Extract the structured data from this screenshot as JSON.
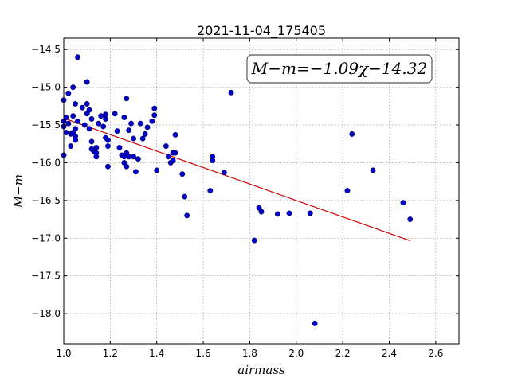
{
  "chart_data": {
    "type": "scatter",
    "title": "2021-11-04_175405",
    "xlabel": "airmass",
    "ylabel": "M−m",
    "annotation": "M−m=−1.09χ−14.32",
    "xlim": [
      1.0,
      2.7
    ],
    "ylim": [
      -18.4,
      -14.35
    ],
    "xticks": [
      1.0,
      1.2,
      1.4,
      1.6,
      1.8,
      2.0,
      2.2,
      2.4,
      2.6
    ],
    "xtick_labels": [
      "1.0",
      "1.2",
      "1.4",
      "1.6",
      "1.8",
      "2.0",
      "2.2",
      "2.4",
      "2.6"
    ],
    "yticks": [
      -14.5,
      -15.0,
      -15.5,
      -16.0,
      -16.5,
      -17.0,
      -17.5,
      -18.0
    ],
    "ytick_labels": [
      "−14.5",
      "−15.0",
      "−15.5",
      "−16.0",
      "−16.5",
      "−17.0",
      "−17.5",
      "−18.0"
    ],
    "grid": true,
    "point_color": "#0000cc",
    "fit_color": "#cc0000",
    "fit": {
      "slope": -1.09,
      "intercept": -14.32,
      "x_range": [
        1.0,
        2.49
      ]
    },
    "points": [
      [
        1.0,
        -15.17
      ],
      [
        1.0,
        -15.45
      ],
      [
        1.0,
        -15.52
      ],
      [
        1.0,
        -15.9
      ],
      [
        1.01,
        -15.4
      ],
      [
        1.01,
        -15.6
      ],
      [
        1.02,
        -15.48
      ],
      [
        1.02,
        -15.08
      ],
      [
        1.03,
        -15.62
      ],
      [
        1.03,
        -15.78
      ],
      [
        1.04,
        -15.0
      ],
      [
        1.04,
        -15.38
      ],
      [
        1.04,
        -15.6
      ],
      [
        1.05,
        -15.22
      ],
      [
        1.05,
        -15.55
      ],
      [
        1.05,
        -15.65
      ],
      [
        1.05,
        -15.7
      ],
      [
        1.06,
        -15.45
      ],
      [
        1.06,
        -14.6
      ],
      [
        1.08,
        -15.27
      ],
      [
        1.09,
        -15.5
      ],
      [
        1.1,
        -15.22
      ],
      [
        1.1,
        -15.35
      ],
      [
        1.1,
        -14.93
      ],
      [
        1.11,
        -15.3
      ],
      [
        1.11,
        -15.55
      ],
      [
        1.12,
        -15.42
      ],
      [
        1.12,
        -15.72
      ],
      [
        1.12,
        -15.82
      ],
      [
        1.13,
        -15.85
      ],
      [
        1.14,
        -15.87
      ],
      [
        1.14,
        -15.92
      ],
      [
        1.14,
        -15.8
      ],
      [
        1.15,
        -15.48
      ],
      [
        1.16,
        -15.38
      ],
      [
        1.17,
        -15.52
      ],
      [
        1.18,
        -15.36
      ],
      [
        1.18,
        -15.42
      ],
      [
        1.18,
        -15.67
      ],
      [
        1.19,
        -15.7
      ],
      [
        1.19,
        -15.78
      ],
      [
        1.19,
        -16.05
      ],
      [
        1.22,
        -15.35
      ],
      [
        1.23,
        -15.58
      ],
      [
        1.24,
        -15.8
      ],
      [
        1.25,
        -15.9
      ],
      [
        1.26,
        -15.4
      ],
      [
        1.26,
        -15.92
      ],
      [
        1.26,
        -16.0
      ],
      [
        1.27,
        -16.05
      ],
      [
        1.27,
        -15.15
      ],
      [
        1.27,
        -15.87
      ],
      [
        1.28,
        -15.57
      ],
      [
        1.28,
        -15.92
      ],
      [
        1.29,
        -15.48
      ],
      [
        1.3,
        -15.68
      ],
      [
        1.3,
        -15.92
      ],
      [
        1.31,
        -16.12
      ],
      [
        1.32,
        -15.95
      ],
      [
        1.33,
        -15.48
      ],
      [
        1.34,
        -15.68
      ],
      [
        1.35,
        -15.62
      ],
      [
        1.36,
        -15.53
      ],
      [
        1.38,
        -15.45
      ],
      [
        1.39,
        -15.28
      ],
      [
        1.39,
        -15.37
      ],
      [
        1.4,
        -16.1
      ],
      [
        1.44,
        -15.78
      ],
      [
        1.45,
        -15.92
      ],
      [
        1.46,
        -16.0
      ],
      [
        1.47,
        -15.97
      ],
      [
        1.47,
        -15.87
      ],
      [
        1.48,
        -15.63
      ],
      [
        1.48,
        -15.87
      ],
      [
        1.51,
        -16.15
      ],
      [
        1.52,
        -16.45
      ],
      [
        1.53,
        -16.7
      ],
      [
        1.63,
        -16.37
      ],
      [
        1.64,
        -15.92
      ],
      [
        1.64,
        -15.97
      ],
      [
        1.69,
        -16.13
      ],
      [
        1.72,
        -15.07
      ],
      [
        1.82,
        -17.03
      ],
      [
        1.84,
        -16.6
      ],
      [
        1.85,
        -16.65
      ],
      [
        1.92,
        -16.68
      ],
      [
        1.97,
        -16.67
      ],
      [
        2.06,
        -16.67
      ],
      [
        2.08,
        -18.13
      ],
      [
        2.22,
        -16.37
      ],
      [
        2.24,
        -15.62
      ],
      [
        2.33,
        -16.1
      ],
      [
        2.46,
        -16.53
      ],
      [
        2.49,
        -16.75
      ]
    ]
  }
}
